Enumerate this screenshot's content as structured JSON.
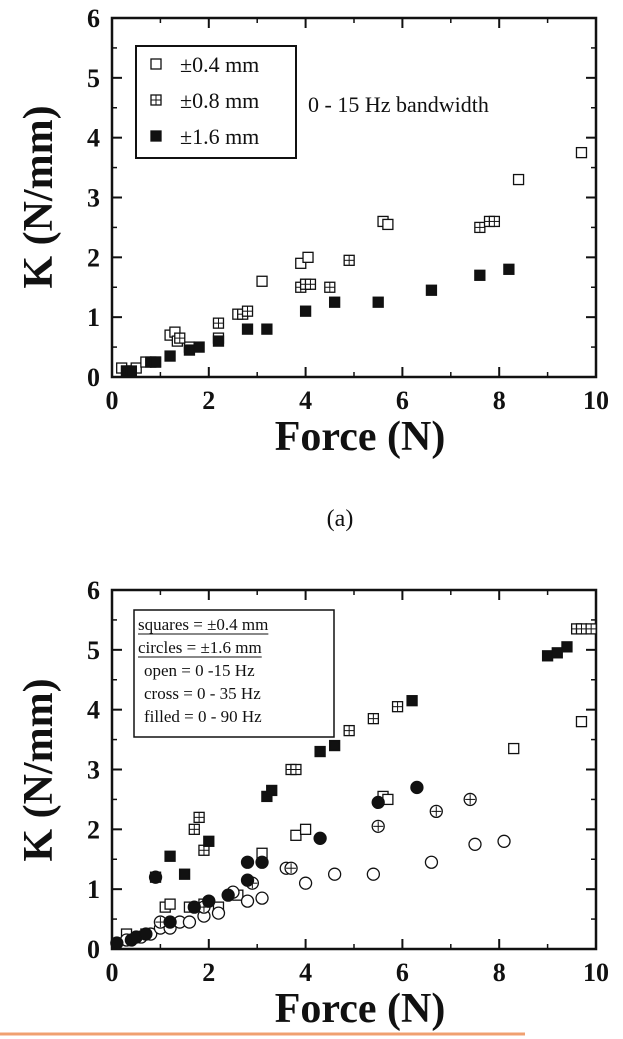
{
  "caption_a": "(a)",
  "chart_data": [
    {
      "type": "scatter",
      "xlabel": "Force (N)",
      "ylabel": "K (N/mm)",
      "xlim": [
        0,
        10
      ],
      "ylim": [
        0,
        6
      ],
      "xticks": [
        "0",
        "2",
        "4",
        "6",
        "8",
        "10"
      ],
      "yticks": [
        "0",
        "1",
        "2",
        "3",
        "4",
        "5",
        "6"
      ],
      "annotation": "0 - 15 Hz bandwidth",
      "series": [
        {
          "name": "±0.4 mm",
          "marker": "square-open",
          "points": [
            [
              0.2,
              0.15
            ],
            [
              0.3,
              0.1
            ],
            [
              0.5,
              0.15
            ],
            [
              0.7,
              0.25
            ],
            [
              0.9,
              0.25
            ],
            [
              1.2,
              0.7
            ],
            [
              1.3,
              0.75
            ],
            [
              1.35,
              0.6
            ],
            [
              1.6,
              0.5
            ],
            [
              2.2,
              0.65
            ],
            [
              2.6,
              1.05
            ],
            [
              3.1,
              1.6
            ],
            [
              3.9,
              1.9
            ],
            [
              4.0,
              1.55
            ],
            [
              4.05,
              2.0
            ],
            [
              5.6,
              2.6
            ],
            [
              5.7,
              2.55
            ],
            [
              8.4,
              3.3
            ],
            [
              9.7,
              3.75
            ]
          ]
        },
        {
          "name": "±0.8 mm",
          "marker": "square-cross",
          "points": [
            [
              1.4,
              0.65
            ],
            [
              2.2,
              0.9
            ],
            [
              2.7,
              1.05
            ],
            [
              2.8,
              1.1
            ],
            [
              3.9,
              1.5
            ],
            [
              4.0,
              1.55
            ],
            [
              4.1,
              1.55
            ],
            [
              4.5,
              1.5
            ],
            [
              4.9,
              1.95
            ],
            [
              7.6,
              2.5
            ],
            [
              7.8,
              2.6
            ],
            [
              7.9,
              2.6
            ]
          ]
        },
        {
          "name": "±1.6 mm",
          "marker": "square-filled",
          "points": [
            [
              0.3,
              0.1
            ],
            [
              0.4,
              0.1
            ],
            [
              0.8,
              0.25
            ],
            [
              0.9,
              0.25
            ],
            [
              1.2,
              0.35
            ],
            [
              1.6,
              0.45
            ],
            [
              1.8,
              0.5
            ],
            [
              2.2,
              0.6
            ],
            [
              2.8,
              0.8
            ],
            [
              3.2,
              0.8
            ],
            [
              4.0,
              1.1
            ],
            [
              4.6,
              1.25
            ],
            [
              5.5,
              1.25
            ],
            [
              6.6,
              1.45
            ],
            [
              7.6,
              1.7
            ],
            [
              8.2,
              1.8
            ]
          ]
        }
      ]
    },
    {
      "type": "scatter",
      "xlabel": "Force (N)",
      "ylabel": "K (N/mm)",
      "xlim": [
        0,
        10
      ],
      "ylim": [
        0,
        6
      ],
      "xticks": [
        "0",
        "2",
        "4",
        "6",
        "8",
        "10"
      ],
      "yticks": [
        "0",
        "1",
        "2",
        "3",
        "4",
        "5",
        "6"
      ],
      "legend_lines": [
        "squares = ±0.4 mm",
        "circles  = ±1.6 mm",
        "open  = 0 -15 Hz",
        "cross = 0 - 35 Hz",
        "filled = 0 - 90 Hz"
      ],
      "series": [
        {
          "marker": "square-open",
          "points": [
            [
              0.3,
              0.25
            ],
            [
              0.7,
              0.25
            ],
            [
              1.1,
              0.7
            ],
            [
              1.2,
              0.75
            ],
            [
              1.6,
              0.7
            ],
            [
              1.9,
              0.75
            ],
            [
              2.2,
              0.7
            ],
            [
              2.6,
              0.9
            ],
            [
              3.1,
              1.6
            ],
            [
              3.8,
              1.9
            ],
            [
              4.0,
              2.0
            ],
            [
              5.6,
              2.55
            ],
            [
              5.7,
              2.5
            ],
            [
              8.3,
              3.35
            ],
            [
              9.7,
              3.8
            ]
          ]
        },
        {
          "marker": "square-cross",
          "points": [
            [
              1.7,
              2.0
            ],
            [
              1.8,
              2.2
            ],
            [
              1.9,
              1.65
            ],
            [
              3.7,
              3.0
            ],
            [
              3.8,
              3.0
            ],
            [
              4.9,
              3.65
            ],
            [
              5.4,
              3.85
            ],
            [
              5.9,
              4.05
            ],
            [
              9.6,
              5.35
            ],
            [
              9.7,
              5.35
            ],
            [
              9.9,
              5.35
            ]
          ]
        },
        {
          "marker": "square-filled",
          "points": [
            [
              0.9,
              1.2
            ],
            [
              1.2,
              1.55
            ],
            [
              1.5,
              1.25
            ],
            [
              2.0,
              1.8
            ],
            [
              3.2,
              2.55
            ],
            [
              3.3,
              2.65
            ],
            [
              4.3,
              3.3
            ],
            [
              4.6,
              3.4
            ],
            [
              6.2,
              4.15
            ],
            [
              9.0,
              4.9
            ],
            [
              9.2,
              4.95
            ],
            [
              9.4,
              5.05
            ]
          ]
        },
        {
          "marker": "circle-open",
          "points": [
            [
              0.3,
              0.15
            ],
            [
              0.6,
              0.2
            ],
            [
              0.8,
              0.25
            ],
            [
              1.0,
              0.35
            ],
            [
              1.2,
              0.35
            ],
            [
              1.4,
              0.45
            ],
            [
              1.6,
              0.45
            ],
            [
              1.9,
              0.55
            ],
            [
              2.2,
              0.6
            ],
            [
              2.5,
              0.95
            ],
            [
              2.8,
              0.8
            ],
            [
              3.1,
              0.85
            ],
            [
              3.6,
              1.35
            ],
            [
              4.0,
              1.1
            ],
            [
              4.6,
              1.25
            ],
            [
              5.4,
              1.25
            ],
            [
              6.6,
              1.45
            ],
            [
              7.5,
              1.75
            ],
            [
              8.1,
              1.8
            ]
          ]
        },
        {
          "marker": "circle-cross",
          "points": [
            [
              1.0,
              0.45
            ],
            [
              1.9,
              0.7
            ],
            [
              2.9,
              1.1
            ],
            [
              3.7,
              1.35
            ],
            [
              5.5,
              2.05
            ],
            [
              6.7,
              2.3
            ],
            [
              7.4,
              2.5
            ]
          ]
        },
        {
          "marker": "circle-filled",
          "points": [
            [
              0.1,
              0.1
            ],
            [
              0.4,
              0.15
            ],
            [
              0.5,
              0.2
            ],
            [
              0.7,
              0.25
            ],
            [
              0.9,
              1.2
            ],
            [
              1.2,
              0.45
            ],
            [
              1.7,
              0.7
            ],
            [
              2.0,
              0.8
            ],
            [
              2.4,
              0.9
            ],
            [
              2.8,
              1.15
            ],
            [
              2.8,
              1.45
            ],
            [
              3.1,
              1.45
            ],
            [
              4.3,
              1.85
            ],
            [
              5.5,
              2.45
            ],
            [
              6.3,
              2.7
            ]
          ]
        }
      ]
    }
  ]
}
